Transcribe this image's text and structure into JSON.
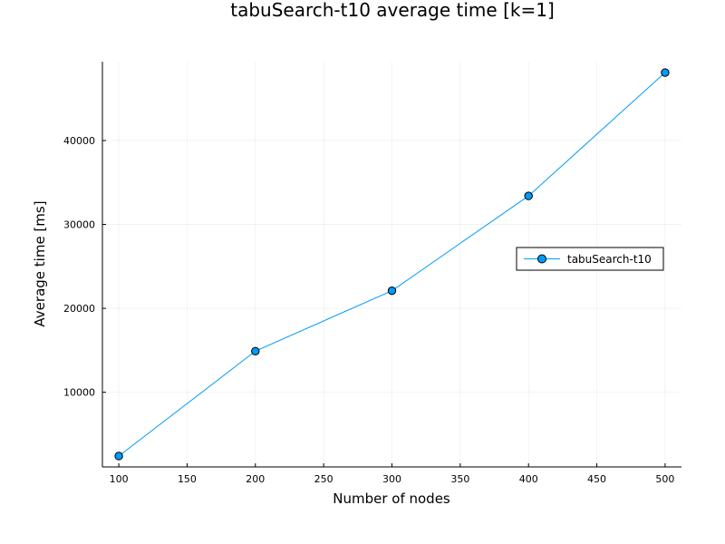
{
  "chart_data": {
    "type": "line",
    "title": "tabuSearch-t10 average time [k=1]",
    "xlabel": "Number of nodes",
    "ylabel": "Average time [ms]",
    "xlim": [
      88,
      512
    ],
    "ylim": [
      1100,
      49400
    ],
    "xticks": [
      100,
      150,
      200,
      250,
      300,
      350,
      400,
      450,
      500
    ],
    "yticks": [
      10000,
      20000,
      30000,
      40000
    ],
    "grid": true,
    "legend_position": "right",
    "series": [
      {
        "name": "tabuSearch-t10",
        "color": "#009af9",
        "x": [
          100,
          200,
          300,
          400,
          500
        ],
        "y": [
          2400,
          14900,
          22100,
          33400,
          48100
        ]
      }
    ]
  }
}
